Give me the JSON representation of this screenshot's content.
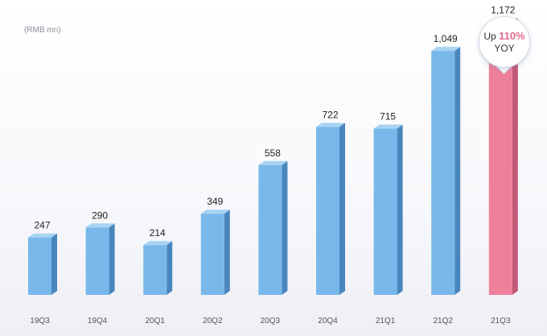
{
  "unit_label": "(RMB mn)",
  "callout": {
    "prefix": "Up",
    "percent": "110%",
    "suffix": "YOY"
  },
  "colors": {
    "bar": "#79b8ea",
    "bar_side": "#4a86bd",
    "bar_top": "#a9d3f3",
    "highlight": "#ee809c",
    "highlight_side": "#c45878",
    "highlight_top": "#f6b4c6"
  },
  "chart_data": {
    "type": "bar",
    "categories": [
      "19Q3",
      "19Q4",
      "20Q1",
      "20Q2",
      "20Q3",
      "20Q4",
      "21Q1",
      "21Q2",
      "21Q3"
    ],
    "values": [
      247,
      290,
      214,
      349,
      558,
      722,
      715,
      1049,
      1172
    ],
    "value_labels": [
      "247",
      "290",
      "214",
      "349",
      "558",
      "722",
      "715",
      "1,049",
      "1,172"
    ],
    "highlight_index": 8,
    "ylabel": "(RMB mn)",
    "ylim": [
      0,
      1240
    ],
    "grid": false,
    "legend": "none"
  }
}
